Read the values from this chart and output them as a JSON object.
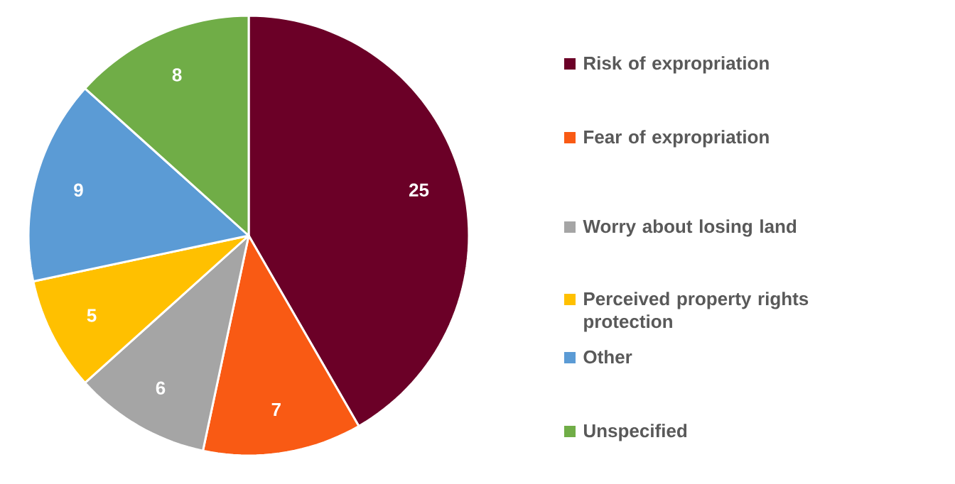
{
  "chart_data": {
    "type": "pie",
    "categories": [
      "Risk of expropriation",
      "Fear of expropriation",
      "Worry about losing land",
      "Perceived property rights protection",
      "Other",
      "Unspecified"
    ],
    "values": [
      25,
      7,
      6,
      5,
      9,
      8
    ],
    "colors": [
      "#6b0027",
      "#f95a14",
      "#a5a5a5",
      "#ffc000",
      "#5b9bd5",
      "#70ad47"
    ],
    "data_labels": true,
    "legend": "right"
  }
}
